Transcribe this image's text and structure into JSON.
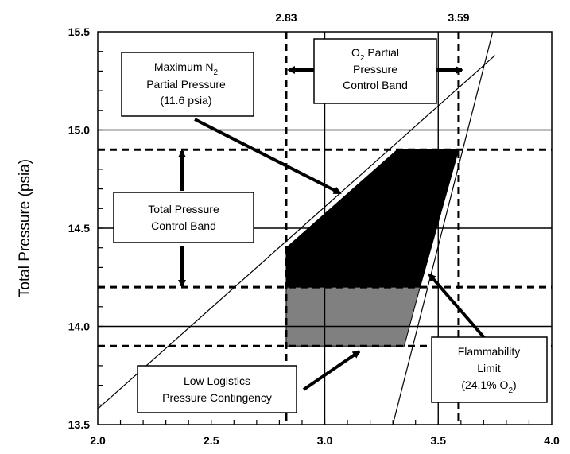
{
  "chart_data": {
    "type": "line",
    "title": "",
    "xlabel": "",
    "ylabel": "Total Pressure (psia)",
    "xlim": [
      2.0,
      4.0
    ],
    "ylim": [
      13.5,
      15.5
    ],
    "x_ticks": [
      "2.0",
      "2.5",
      "3.0",
      "3.5",
      "4.0"
    ],
    "y_ticks": [
      "13.5",
      "14.0",
      "14.5",
      "15.0",
      "15.5"
    ],
    "grid_x": [
      3.0,
      3.5
    ],
    "grid_y": [
      14.0,
      14.5,
      15.0
    ],
    "top_tick_labels": [
      "2.83",
      "3.59"
    ],
    "dashed_vertical": [
      2.83,
      3.59
    ],
    "dashed_horizontal": [
      14.9,
      14.2,
      13.9
    ],
    "lines": [
      {
        "id": "max-n2-line",
        "points": [
          [
            2.0,
            13.58
          ],
          [
            3.75,
            15.38
          ]
        ]
      },
      {
        "id": "flammability-line",
        "points": [
          [
            3.3,
            13.5
          ],
          [
            3.74,
            15.5
          ]
        ]
      }
    ],
    "regions": [
      {
        "id": "black-operating-region",
        "fill": "#000000",
        "polygon": [
          [
            2.83,
            14.2
          ],
          [
            2.83,
            14.4
          ],
          [
            3.32,
            14.9
          ],
          [
            3.59,
            14.9
          ],
          [
            3.42,
            14.2
          ]
        ]
      },
      {
        "id": "gray-contingency-region",
        "fill": "#808080",
        "polygon": [
          [
            2.83,
            13.9
          ],
          [
            2.83,
            14.2
          ],
          [
            3.42,
            14.2
          ],
          [
            3.35,
            13.9
          ]
        ]
      }
    ],
    "annotations": {
      "max_n2": [
        "Maximum N",
        "2",
        "Partial Pressure",
        "(11.6 psia)"
      ],
      "o2_band": [
        "O",
        "2",
        " Partial",
        "Pressure",
        "Control Band"
      ],
      "total_band": [
        "Total Pressure",
        "Control Band"
      ],
      "low_logistics": [
        "Low Logistics",
        "Pressure Contingency"
      ],
      "flammability": [
        "Flammability",
        "Limit",
        "(24.1% O",
        "2",
        ")"
      ]
    }
  }
}
